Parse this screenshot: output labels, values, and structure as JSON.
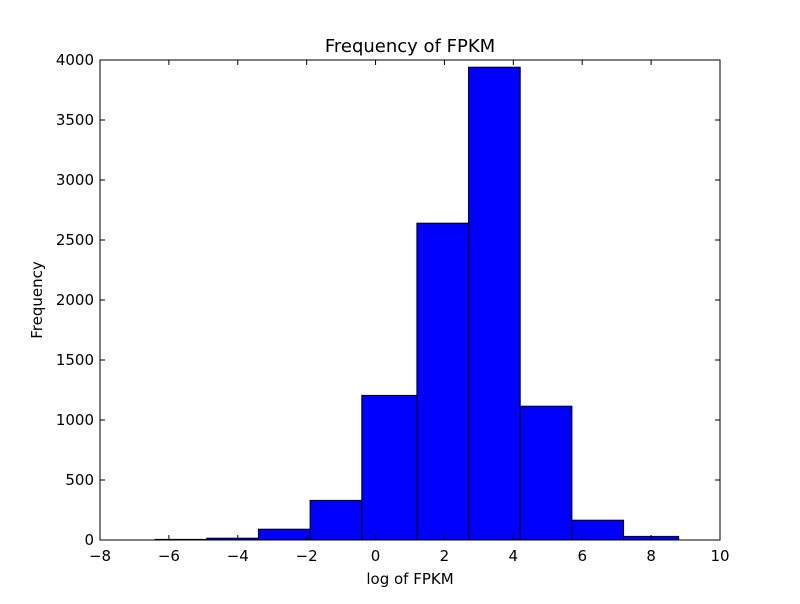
{
  "chart_data": {
    "type": "bar",
    "title": "Frequency of FPKM",
    "xlabel": "log of FPKM",
    "ylabel": "Frequency",
    "xlim": [
      -8,
      10
    ],
    "ylim": [
      0,
      4000
    ],
    "xticks": [
      -8,
      -6,
      -4,
      -2,
      0,
      2,
      4,
      6,
      8,
      10
    ],
    "yticks": [
      0,
      500,
      1000,
      1500,
      2000,
      2500,
      3000,
      3500,
      4000
    ],
    "grid": false,
    "bar_color": "#0000ff",
    "edge_color": "#000000",
    "bins": [
      {
        "x0": -6.4,
        "x1": -4.9,
        "value": 5
      },
      {
        "x0": -4.9,
        "x1": -3.4,
        "value": 15
      },
      {
        "x0": -3.4,
        "x1": -1.9,
        "value": 90
      },
      {
        "x0": -1.9,
        "x1": -0.4,
        "value": 330
      },
      {
        "x0": -0.4,
        "x1": 1.2,
        "value": 1205
      },
      {
        "x0": 1.2,
        "x1": 2.7,
        "value": 2640
      },
      {
        "x0": 2.7,
        "x1": 4.2,
        "value": 3940
      },
      {
        "x0": 4.2,
        "x1": 5.7,
        "value": 1115
      },
      {
        "x0": 5.7,
        "x1": 7.2,
        "value": 165
      },
      {
        "x0": 7.2,
        "x1": 8.8,
        "value": 30
      }
    ]
  }
}
